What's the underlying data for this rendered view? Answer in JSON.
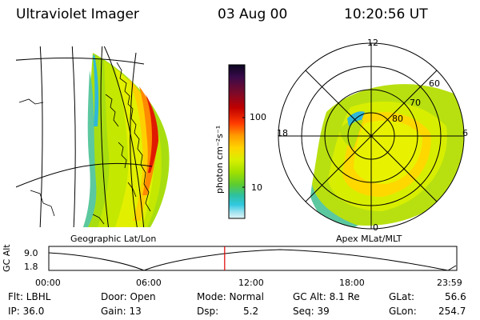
{
  "header": {
    "instrument": "Ultraviolet Imager",
    "date": "03 Aug 00",
    "time": "10:20:56 UT"
  },
  "left_panel": {
    "caption": "Geographic Lat/Lon"
  },
  "right_panel": {
    "caption": "Apex MLat/MLT",
    "mlt_labels": [
      "12",
      "18",
      "6",
      "0"
    ],
    "mlat_labels": [
      "60",
      "70",
      "80"
    ]
  },
  "colorbar": {
    "unit_label": "photon cm⁻²s⁻¹",
    "tick_labels": [
      "100",
      "10"
    ],
    "colors": [
      "#0a0520",
      "#3a0a4a",
      "#7a0a2a",
      "#c00000",
      "#ff3a00",
      "#ff9a00",
      "#ffd400",
      "#d8f000",
      "#a0e000",
      "#5ccc30",
      "#2ec0a0",
      "#30c8e0",
      "#a0e4f0",
      "#e0f4f8"
    ]
  },
  "altitude_plot": {
    "y_label": "GC Alt",
    "y_ticks": [
      "9.0",
      "1.8"
    ],
    "x_ticks": [
      "00:00",
      "06:00",
      "12:00",
      "18:00",
      "23:59"
    ],
    "current_time_fraction": 0.431
  },
  "status": {
    "filter": "Flt: LBHL",
    "ip": "IP: 36.0",
    "door": "Door: Open",
    "gain": "Gain: 13",
    "mode": "Mode: Normal",
    "dsp_label": "Dsp:",
    "dsp_value": "5.2",
    "gc_alt": "GC Alt: 8.1 Re",
    "seq": "Seq: 39",
    "glat_label": "GLat:",
    "glat_value": "56.6",
    "glon_label": "GLon:",
    "glon_value": "254.7"
  }
}
